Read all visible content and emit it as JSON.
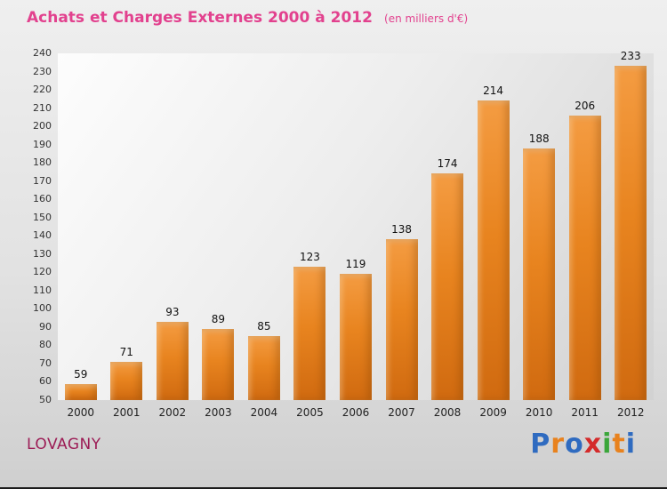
{
  "header": {
    "title": "Achats et Charges Externes 2000 à 2012",
    "subtitle": "(en milliers d'€)"
  },
  "footer": {
    "location": "LOVAGNY",
    "brand": {
      "name": "Proxiti",
      "letters": [
        {
          "ch": "P",
          "color": "#2f6bc0"
        },
        {
          "ch": "r",
          "color": "#e8821e"
        },
        {
          "ch": "o",
          "color": "#2f6bc0"
        },
        {
          "ch": "x",
          "color": "#d42a2a"
        },
        {
          "ch": "i",
          "color": "#3aa63a"
        },
        {
          "ch": "t",
          "color": "#e8821e"
        },
        {
          "ch": "i",
          "color": "#2f6bc0"
        }
      ]
    }
  },
  "colors": {
    "title": "#e2418e",
    "location": "#9c1c55",
    "bar": "#e8841f",
    "background": "#e2e2e2"
  },
  "chart_data": {
    "type": "bar",
    "title": "Achats et Charges Externes 2000 à 2012 (en milliers d'€)",
    "categories": [
      "2000",
      "2001",
      "2002",
      "2003",
      "2004",
      "2005",
      "2006",
      "2007",
      "2008",
      "2009",
      "2010",
      "2011",
      "2012"
    ],
    "values": [
      59,
      71,
      93,
      89,
      85,
      123,
      119,
      138,
      174,
      214,
      188,
      206,
      233
    ],
    "xlabel": "",
    "ylabel": "",
    "ylim": [
      50,
      240
    ],
    "ytick_step": 10,
    "grid": false,
    "legend": false,
    "value_labels": true
  }
}
